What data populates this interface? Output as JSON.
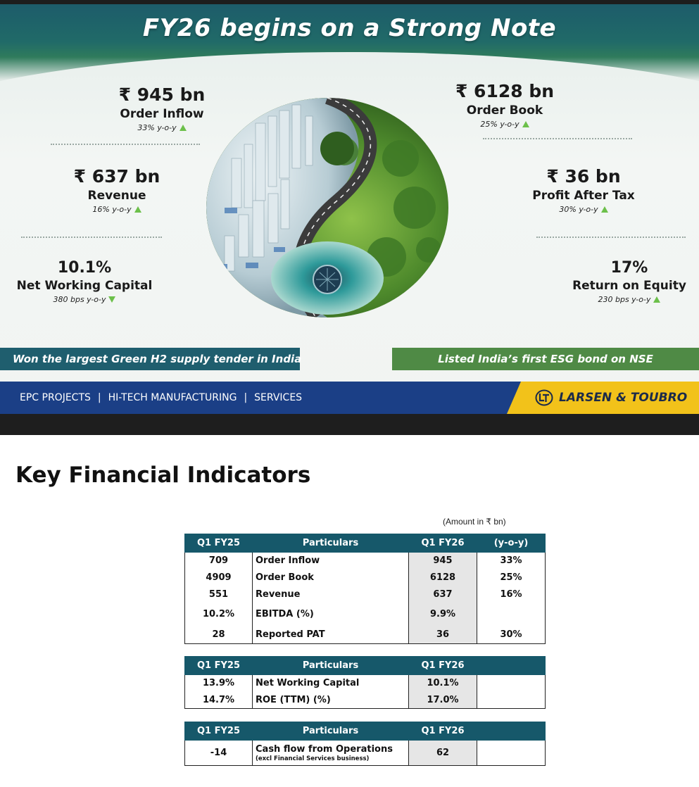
{
  "banner": {
    "title": "FY26 begins on a Strong Note",
    "metrics": {
      "order_inflow": {
        "value": "₹ 945 bn",
        "label": "Order Inflow",
        "change": "33% y-o-y",
        "trend": "up"
      },
      "order_book": {
        "value": "₹ 6128 bn",
        "label": "Order Book",
        "change": "25% y-o-y",
        "trend": "up"
      },
      "revenue": {
        "value": "₹ 637 bn",
        "label": "Revenue",
        "change": "16% y-o-y",
        "trend": "up"
      },
      "profit_after_tax": {
        "value": "₹ 36 bn",
        "label": "Profit After Tax",
        "change": "30% y-o-y",
        "trend": "up"
      },
      "net_working_capital": {
        "value": "10.1%",
        "label": "Net Working Capital",
        "change": "380  bps y-o-y",
        "trend": "down"
      },
      "return_on_equity": {
        "value": "17%",
        "label": "Return on Equity",
        "change": "230 bps y-o-y",
        "trend": "up"
      }
    },
    "callouts": {
      "left": "Won the largest Green H2 supply tender in India",
      "right": "Listed India’s first ESG bond on NSE"
    },
    "footer": {
      "links": [
        "EPC PROJECTS",
        "HI-TECH MANUFACTURING",
        "SERVICES"
      ],
      "brand": "LARSEN & TOUBRO"
    },
    "colors": {
      "teal": "#1f5e6e",
      "green": "#4f8a45",
      "navy": "#1b3f86",
      "brand_yellow": "#f2c21a",
      "arrow_green": "#6cc04a"
    },
    "image_icon": "city-forest-yin-yang-globe-icon"
  },
  "section": {
    "title": "Key Financial Indicators",
    "amount_note": "(Amount in ₹ bn)"
  },
  "tables": [
    {
      "headers": [
        "Q1 FY25",
        "Particulars",
        "Q1 FY26",
        "(y-o-y)"
      ],
      "rows": [
        [
          "709",
          "Order Inflow",
          "945",
          "33%"
        ],
        [
          "4909",
          "Order Book",
          "6128",
          "25%"
        ],
        [
          "551",
          "Revenue",
          "637",
          "16%"
        ],
        [
          "10.2%",
          "EBITDA (%)",
          "9.9%",
          ""
        ],
        [
          "28",
          "Reported PAT",
          "36",
          "30%"
        ]
      ]
    },
    {
      "headers": [
        "Q1 FY25",
        "Particulars",
        "Q1 FY26",
        ""
      ],
      "rows": [
        [
          "13.9%",
          "Net Working Capital",
          "10.1%",
          ""
        ],
        [
          "14.7%",
          "ROE (TTM) (%)",
          "17.0%",
          ""
        ]
      ]
    },
    {
      "headers": [
        "Q1 FY25",
        "Particulars",
        "Q1 FY26",
        ""
      ],
      "rows": [
        [
          "-14",
          "Cash flow from Operations",
          "62",
          ""
        ]
      ],
      "row_note": "(excl Financial Services business)"
    }
  ]
}
